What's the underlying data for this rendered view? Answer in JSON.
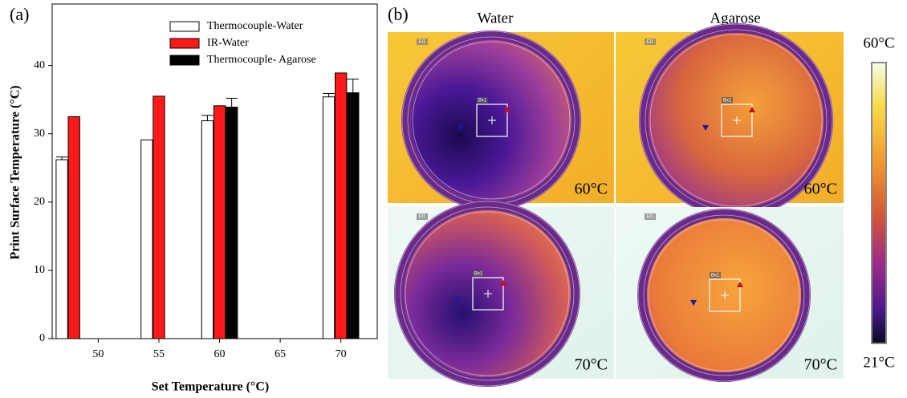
{
  "chart_data": {
    "type": "bar",
    "panel_label": "(a)",
    "xlabel": "Set Temperature (°C)",
    "ylabel": "Print Surface Temperature (°C)",
    "x": [
      48,
      55,
      60,
      70
    ],
    "xlim": [
      46.2,
      73
    ],
    "xticks": [
      50,
      55,
      60,
      65,
      70
    ],
    "ylim": [
      0,
      49
    ],
    "yticks": [
      0,
      10,
      20,
      30,
      40
    ],
    "legend": "upper right",
    "series": [
      {
        "name": "Thermocouple-Water",
        "color": "#ffffff",
        "values": [
          26.2,
          29.1,
          31.9,
          35.4
        ],
        "errors": [
          0.4,
          null,
          0.8,
          0.5
        ]
      },
      {
        "name": "IR-Water",
        "color": "#ff1a1a",
        "values": [
          32.5,
          35.5,
          34.1,
          38.9
        ]
      },
      {
        "name": "Thermocouple- Agarose",
        "color": "#000000",
        "values": [
          null,
          null,
          33.9,
          36
        ],
        "errors": [
          null,
          null,
          1.3,
          2
        ]
      }
    ]
  },
  "figure_b": {
    "panel_label": "(b)",
    "columns": [
      "Water",
      "Agarose"
    ],
    "images": [
      {
        "temperature": "60°C",
        "box_label": "Bx1",
        "tag": "El1"
      },
      {
        "temperature": "60°C",
        "box_label": "Bx1",
        "tag": "El1"
      },
      {
        "temperature": "70°C",
        "box_label": "Bx1",
        "tag": "El1"
      },
      {
        "temperature": "70°C",
        "box_label": "Bx1",
        "tag": "El1"
      }
    ],
    "colorbar": {
      "max_label": "60°C",
      "min_label": "21°C"
    }
  }
}
